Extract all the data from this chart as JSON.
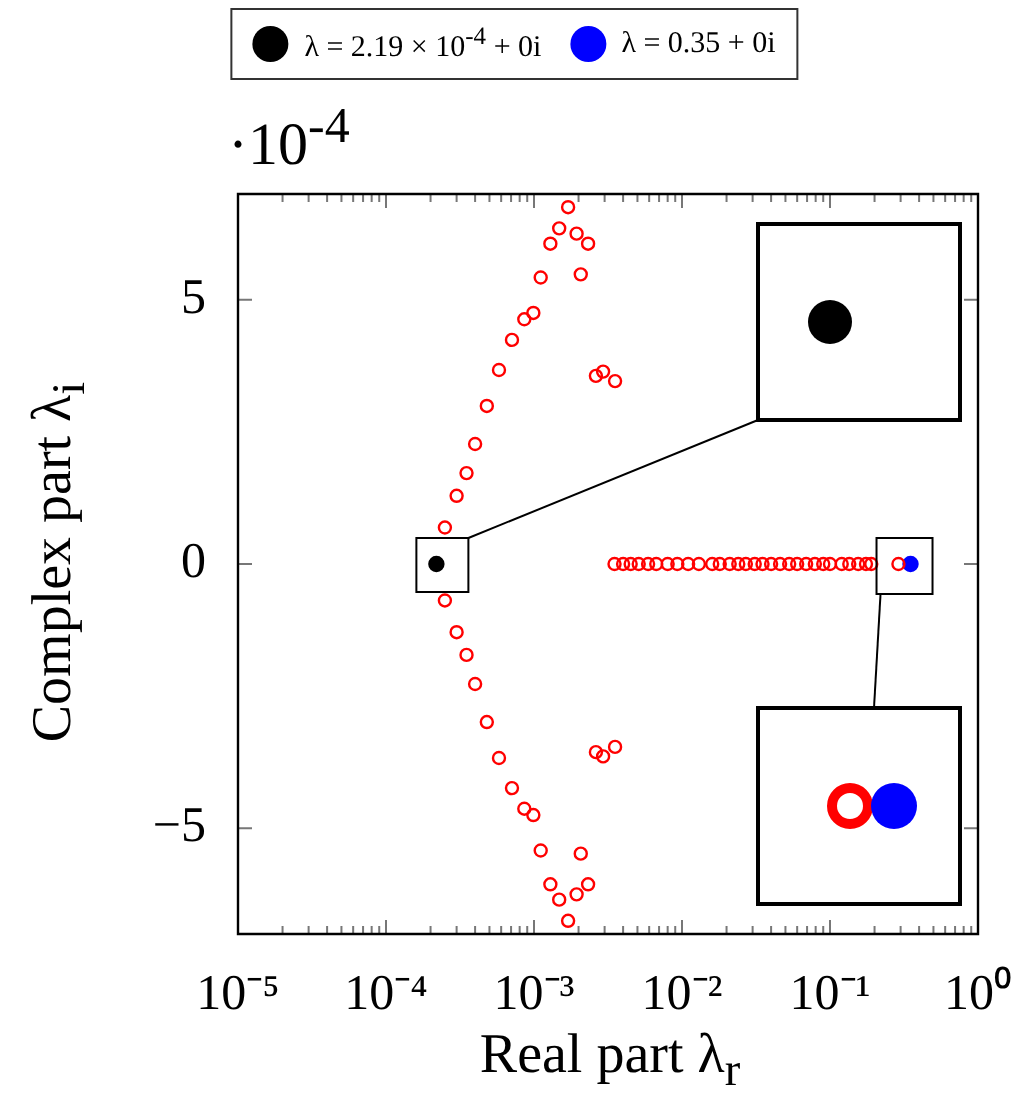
{
  "chart_data": {
    "type": "scatter",
    "xlabel": "Real part λ$_{r}$",
    "ylabel": "Complex part λ$_{i}$",
    "annotations": [
      "·10$^{-4}$"
    ],
    "log": "x",
    "legend": "top",
    "marker": "circle",
    "xlim": [
      1e-05,
      1
    ],
    "ylim": [
      -7,
      7
    ],
    "yticks": [
      -5,
      0,
      5
    ],
    "xticks": [
      {
        "value": 1e-05,
        "label": "10⁻⁵"
      },
      {
        "value": 2e-05,
        "label": null
      },
      {
        "value": 3e-05,
        "label": null
      },
      {
        "value": 4e-05,
        "label": null
      },
      {
        "value": 5e-05,
        "label": null
      },
      {
        "value": 6e-05,
        "label": null
      },
      {
        "value": 7e-05,
        "label": null
      },
      {
        "value": 8e-05,
        "label": null
      },
      {
        "value": 9e-05,
        "label": null
      },
      {
        "value": 0.0001,
        "label": "10⁻⁴"
      },
      {
        "value": 0.0002,
        "label": null
      },
      {
        "value": 0.0003,
        "label": null
      },
      {
        "value": 0.0004,
        "label": null
      },
      {
        "value": 0.0005,
        "label": null
      },
      {
        "value": 0.0006,
        "label": null
      },
      {
        "value": 0.0007,
        "label": null
      },
      {
        "value": 0.0008,
        "label": null
      },
      {
        "value": 0.0009,
        "label": null
      },
      {
        "value": 0.001,
        "label": "10⁻³"
      },
      {
        "value": 0.002,
        "label": null
      },
      {
        "value": 0.003,
        "label": null
      },
      {
        "value": 0.004,
        "label": null
      },
      {
        "value": 0.005,
        "label": null
      },
      {
        "value": 0.006,
        "label": null
      },
      {
        "value": 0.007,
        "label": null
      },
      {
        "value": 0.008,
        "label": null
      },
      {
        "value": 0.009,
        "label": null
      },
      {
        "value": 0.01,
        "label": "10⁻²"
      },
      {
        "value": 0.02,
        "label": null
      },
      {
        "value": 0.03,
        "label": null
      },
      {
        "value": 0.04,
        "label": null
      },
      {
        "value": 0.05,
        "label": null
      },
      {
        "value": 0.06,
        "label": null
      },
      {
        "value": 0.07,
        "label": null
      },
      {
        "value": 0.08,
        "label": null
      },
      {
        "value": 0.09,
        "label": null
      },
      {
        "value": 0.1,
        "label": "10⁻¹"
      },
      {
        "value": 0.2,
        "label": null
      },
      {
        "value": 0.3,
        "label": null
      },
      {
        "value": 0.4,
        "label": null
      },
      {
        "value": 0.5,
        "label": null
      },
      {
        "value": 0.6,
        "label": null
      },
      {
        "value": 0.7,
        "label": null
      },
      {
        "value": 0.8,
        "label": null
      },
      {
        "value": 0.9,
        "label": null
      },
      {
        "value": 1,
        "label": "10⁰"
      }
    ],
    "series": [
      {
        "color": "#ff0000",
        "x": [
          0.0017,
          0.00148,
          0.00194,
          0.00129,
          0.00232,
          0.00111,
          0.00207,
          0.00099,
          0.00086,
          0.00071,
          0.00058,
          0.00262,
          0.00293,
          0.00353,
          0.00048,
          0.0004,
          0.00035,
          0.0003,
          0.00025,
          0.0017,
          0.00148,
          0.00194,
          0.00129,
          0.00232,
          0.00111,
          0.00207,
          0.00099,
          0.00086,
          0.00071,
          0.00058,
          0.00262,
          0.00293,
          0.00353,
          0.00048,
          0.0004,
          0.00035,
          0.0003,
          0.00025,
          0.0035,
          0.004,
          0.0045,
          0.0051,
          0.0059,
          0.0067,
          0.008,
          0.0093,
          0.011,
          0.013,
          0.016,
          0.018,
          0.021,
          0.024,
          0.027,
          0.031,
          0.035,
          0.04,
          0.046,
          0.053,
          0.06,
          0.069,
          0.079,
          0.09,
          0.1,
          0.12,
          0.135,
          0.155,
          0.175,
          0.19,
          0.29
        ],
        "values": [
          6.75,
          6.35,
          6.25,
          6.06,
          6.06,
          5.42,
          5.48,
          4.75,
          4.63,
          4.24,
          3.67,
          3.56,
          3.64,
          3.46,
          2.99,
          2.27,
          1.72,
          1.29,
          0.69,
          -6.75,
          -6.35,
          -6.25,
          -6.06,
          -6.06,
          -5.42,
          -5.48,
          -4.75,
          -4.63,
          -4.24,
          -3.67,
          -3.56,
          -3.64,
          -3.46,
          -2.99,
          -2.27,
          -1.72,
          -1.29,
          -0.69,
          0,
          0,
          0,
          0,
          0,
          0,
          0,
          0,
          0,
          0,
          0,
          0,
          0,
          0,
          0,
          0,
          0,
          0,
          0,
          0,
          0,
          0,
          0,
          0,
          0,
          0,
          0,
          0,
          0,
          0,
          0
        ]
      },
      {
        "name": "λ = 2.19 × 10$^{-4}$ + 0i",
        "color": "#000000",
        "x": [
          0.000219
        ],
        "values": [
          0
        ]
      },
      {
        "name": "λ = 0.35 + 0i",
        "color": "#0000ff",
        "x": [
          0.35
        ],
        "values": [
          0
        ]
      }
    ]
  }
}
